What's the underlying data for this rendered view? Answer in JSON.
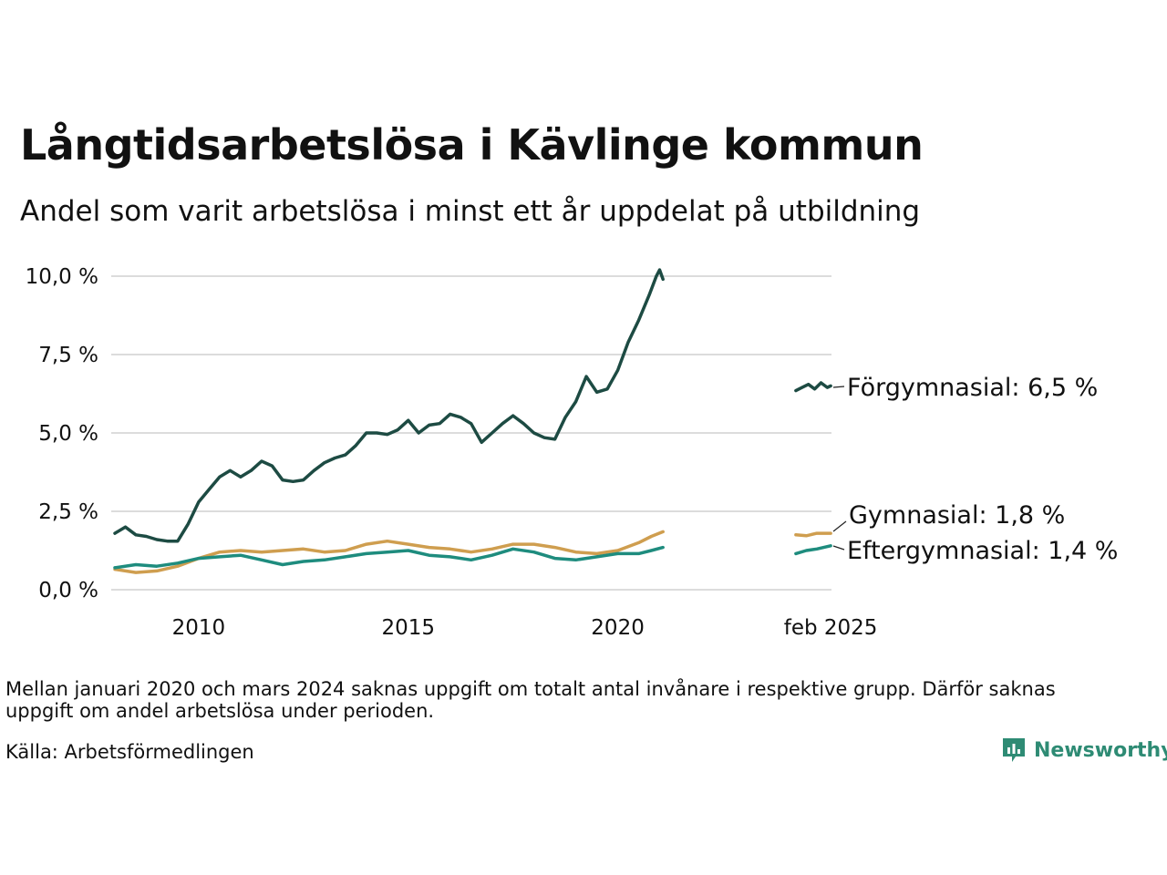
{
  "header": {
    "title": "Långtidsarbetslösa i Kävlinge kommun",
    "subtitle": "Andel som varit arbetslösa i minst ett år uppdelat på utbildning"
  },
  "footer": {
    "note": "Mellan januari 2020 och mars 2024 saknas uppgift om totalt antal invånare i respektive grupp. Därför saknas uppgift om andel arbetslösa under perioden.",
    "source": "Källa: Arbetsförmedlingen",
    "brand": "Newsworthy",
    "brand_icon": "newsworthy-logo-icon",
    "brand_color": "#2e8b74"
  },
  "chart_data": {
    "type": "line",
    "title": "Långtidsarbetslösa i Kävlinge kommun",
    "subtitle": "Andel som varit arbetslösa i minst ett år uppdelat på utbildning",
    "xlabel": "",
    "ylabel": "",
    "x_ticks": [
      {
        "x": 2010.0,
        "label": "2010"
      },
      {
        "x": 2015.0,
        "label": "2015"
      },
      {
        "x": 2020.0,
        "label": "2020"
      },
      {
        "x": 2025.08,
        "label": "feb 2025"
      }
    ],
    "y_ticks": [
      {
        "y": 0,
        "label": "0,0 %"
      },
      {
        "y": 2.5,
        "label": "2,5 %"
      },
      {
        "y": 5,
        "label": "5,0 %"
      },
      {
        "y": 7.5,
        "label": "7,5 %"
      },
      {
        "y": 10,
        "label": "10,0 %"
      }
    ],
    "xlim": [
      2008.0,
      2025.1
    ],
    "ylim": [
      0,
      10.5
    ],
    "grid": "horizontal",
    "series": [
      {
        "name": "Förgymnasial",
        "end_label": "Förgymnasial: 6,5 %",
        "color": "#1d4b43",
        "segments": [
          [
            [
              2008.0,
              1.8
            ],
            [
              2008.25,
              2.0
            ],
            [
              2008.5,
              1.75
            ],
            [
              2008.75,
              1.7
            ],
            [
              2009.0,
              1.6
            ],
            [
              2009.25,
              1.55
            ],
            [
              2009.5,
              1.55
            ],
            [
              2009.75,
              2.1
            ],
            [
              2010.0,
              2.8
            ],
            [
              2010.25,
              3.2
            ],
            [
              2010.5,
              3.6
            ],
            [
              2010.75,
              3.8
            ],
            [
              2011.0,
              3.6
            ],
            [
              2011.25,
              3.8
            ],
            [
              2011.5,
              4.1
            ],
            [
              2011.75,
              3.95
            ],
            [
              2012.0,
              3.5
            ],
            [
              2012.25,
              3.45
            ],
            [
              2012.5,
              3.5
            ],
            [
              2012.75,
              3.8
            ],
            [
              2013.0,
              4.05
            ],
            [
              2013.25,
              4.2
            ],
            [
              2013.5,
              4.3
            ],
            [
              2013.75,
              4.6
            ],
            [
              2014.0,
              5.0
            ],
            [
              2014.25,
              5.0
            ],
            [
              2014.5,
              4.95
            ],
            [
              2014.75,
              5.1
            ],
            [
              2015.0,
              5.4
            ],
            [
              2015.25,
              5.0
            ],
            [
              2015.5,
              5.25
            ],
            [
              2015.75,
              5.3
            ],
            [
              2016.0,
              5.6
            ],
            [
              2016.25,
              5.5
            ],
            [
              2016.5,
              5.3
            ],
            [
              2016.75,
              4.7
            ],
            [
              2017.0,
              5.0
            ],
            [
              2017.25,
              5.3
            ],
            [
              2017.5,
              5.55
            ],
            [
              2017.75,
              5.3
            ],
            [
              2018.0,
              5.0
            ],
            [
              2018.25,
              4.85
            ],
            [
              2018.5,
              4.8
            ],
            [
              2018.75,
              5.5
            ],
            [
              2019.0,
              6.0
            ],
            [
              2019.25,
              6.8
            ],
            [
              2019.5,
              6.3
            ],
            [
              2019.75,
              6.4
            ],
            [
              2020.0,
              7.0
            ],
            [
              2020.25,
              7.9
            ],
            [
              2020.5,
              8.6
            ],
            [
              2020.75,
              9.4
            ],
            [
              2020.92,
              10.0
            ],
            [
              2021.0,
              10.2
            ],
            [
              2021.08,
              9.9
            ]
          ],
          [
            [
              2024.25,
              6.35
            ],
            [
              2024.4,
              6.45
            ],
            [
              2024.55,
              6.55
            ],
            [
              2024.7,
              6.4
            ],
            [
              2024.85,
              6.6
            ],
            [
              2025.0,
              6.45
            ],
            [
              2025.08,
              6.5
            ]
          ]
        ]
      },
      {
        "name": "Gymnasial",
        "end_label": "Gymnasial: 1,8 %",
        "color": "#cf9e4f",
        "segments": [
          [
            [
              2008.0,
              0.65
            ],
            [
              2008.5,
              0.55
            ],
            [
              2009.0,
              0.6
            ],
            [
              2009.5,
              0.75
            ],
            [
              2010.0,
              1.0
            ],
            [
              2010.5,
              1.2
            ],
            [
              2011.0,
              1.25
            ],
            [
              2011.5,
              1.2
            ],
            [
              2012.0,
              1.25
            ],
            [
              2012.5,
              1.3
            ],
            [
              2013.0,
              1.2
            ],
            [
              2013.5,
              1.25
            ],
            [
              2014.0,
              1.45
            ],
            [
              2014.5,
              1.55
            ],
            [
              2015.0,
              1.45
            ],
            [
              2015.5,
              1.35
            ],
            [
              2016.0,
              1.3
            ],
            [
              2016.5,
              1.2
            ],
            [
              2017.0,
              1.3
            ],
            [
              2017.5,
              1.45
            ],
            [
              2018.0,
              1.45
            ],
            [
              2018.5,
              1.35
            ],
            [
              2019.0,
              1.2
            ],
            [
              2019.5,
              1.15
            ],
            [
              2020.0,
              1.25
            ],
            [
              2020.5,
              1.5
            ],
            [
              2020.8,
              1.7
            ],
            [
              2021.08,
              1.85
            ]
          ],
          [
            [
              2024.25,
              1.75
            ],
            [
              2024.5,
              1.72
            ],
            [
              2024.75,
              1.8
            ],
            [
              2025.08,
              1.8
            ]
          ]
        ]
      },
      {
        "name": "Eftergymnasial",
        "end_label": "Eftergymnasial: 1,4 %",
        "color": "#1e8c7e",
        "segments": [
          [
            [
              2008.0,
              0.7
            ],
            [
              2008.5,
              0.8
            ],
            [
              2009.0,
              0.75
            ],
            [
              2009.5,
              0.85
            ],
            [
              2010.0,
              1.0
            ],
            [
              2010.5,
              1.05
            ],
            [
              2011.0,
              1.1
            ],
            [
              2011.5,
              0.95
            ],
            [
              2012.0,
              0.8
            ],
            [
              2012.5,
              0.9
            ],
            [
              2013.0,
              0.95
            ],
            [
              2013.5,
              1.05
            ],
            [
              2014.0,
              1.15
            ],
            [
              2014.5,
              1.2
            ],
            [
              2015.0,
              1.25
            ],
            [
              2015.5,
              1.1
            ],
            [
              2016.0,
              1.05
            ],
            [
              2016.5,
              0.95
            ],
            [
              2017.0,
              1.1
            ],
            [
              2017.5,
              1.3
            ],
            [
              2018.0,
              1.2
            ],
            [
              2018.5,
              1.0
            ],
            [
              2019.0,
              0.95
            ],
            [
              2019.5,
              1.05
            ],
            [
              2020.0,
              1.15
            ],
            [
              2020.5,
              1.15
            ],
            [
              2020.8,
              1.25
            ],
            [
              2021.08,
              1.35
            ]
          ],
          [
            [
              2024.25,
              1.15
            ],
            [
              2024.5,
              1.25
            ],
            [
              2024.75,
              1.3
            ],
            [
              2025.08,
              1.4
            ]
          ]
        ]
      }
    ]
  }
}
